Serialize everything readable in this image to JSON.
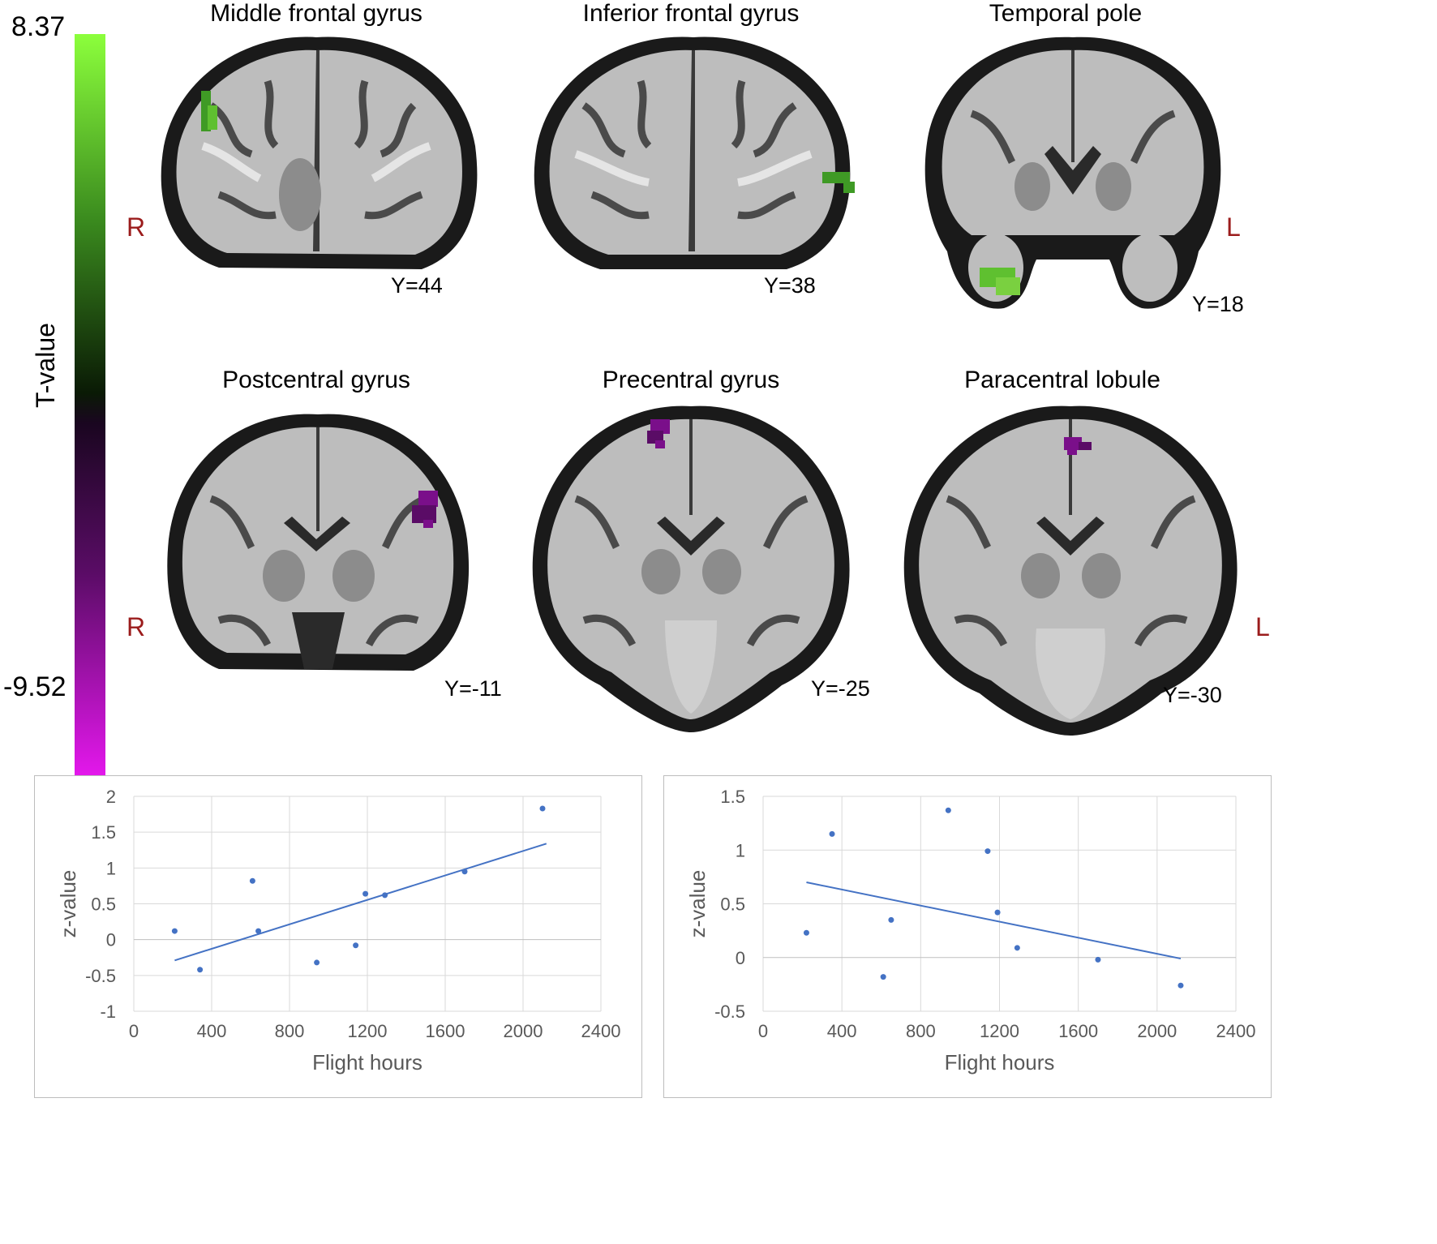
{
  "colorbar": {
    "max_label": "8.37",
    "min_label": "-9.52",
    "title": "T-value",
    "max_color": "#8cff3c",
    "min_color": "#e818f0"
  },
  "panels": [
    {
      "title": "Middle frontal gyrus",
      "slice": "Y=44",
      "blob_color": "#3f9a25"
    },
    {
      "title": "Inferior frontal gyrus",
      "slice": "Y=38",
      "blob_color": "#3f9a25"
    },
    {
      "title": "Temporal pole",
      "slice": "Y=18",
      "blob_color": "#5fc030"
    },
    {
      "title": "Postcentral gyrus",
      "slice": "Y=-11",
      "blob_color": "#7a0f8a"
    },
    {
      "title": "Precentral gyrus",
      "slice": "Y=-25",
      "blob_color": "#7a0f8a"
    },
    {
      "title": "Paracentral lobule",
      "slice": "Y=-30",
      "blob_color": "#7a0f8a"
    }
  ],
  "orientation": {
    "right": "R",
    "left": "L"
  },
  "chart_data": [
    {
      "type": "scatter",
      "xlabel": "Flight hours",
      "ylabel": "z-value",
      "xlim": [
        0,
        2400
      ],
      "ylim": [
        -1,
        2
      ],
      "xticks": [
        "0",
        "400",
        "800",
        "1200",
        "1600",
        "2000",
        "2400"
      ],
      "yticks": [
        "-1",
        "-0.5",
        "0",
        "0.5",
        "1",
        "1.5",
        "2"
      ],
      "grid": true,
      "point_color": "#4472c4",
      "x": [
        210,
        340,
        610,
        640,
        940,
        1140,
        1190,
        1290,
        1700,
        2100
      ],
      "y": [
        0.12,
        -0.42,
        0.82,
        0.12,
        -0.32,
        -0.08,
        0.64,
        0.62,
        0.95,
        1.83
      ],
      "trendline": {
        "x": [
          210,
          2120
        ],
        "y": [
          -0.29,
          1.34
        ]
      }
    },
    {
      "type": "scatter",
      "xlabel": "Flight hours",
      "ylabel": "z-value",
      "xlim": [
        0,
        2400
      ],
      "ylim": [
        -0.5,
        1.5
      ],
      "xticks": [
        "0",
        "400",
        "800",
        "1200",
        "1600",
        "2000",
        "2400"
      ],
      "yticks": [
        "-0.5",
        "0",
        "0.5",
        "1",
        "1.5"
      ],
      "grid": true,
      "point_color": "#4472c4",
      "x": [
        220,
        350,
        610,
        650,
        940,
        1140,
        1190,
        1290,
        1700,
        2120
      ],
      "y": [
        0.23,
        1.15,
        -0.18,
        0.35,
        1.37,
        0.99,
        0.42,
        0.09,
        -0.02,
        -0.26
      ],
      "trendline": {
        "x": [
          220,
          2120
        ],
        "y": [
          0.7,
          -0.01
        ]
      }
    }
  ]
}
